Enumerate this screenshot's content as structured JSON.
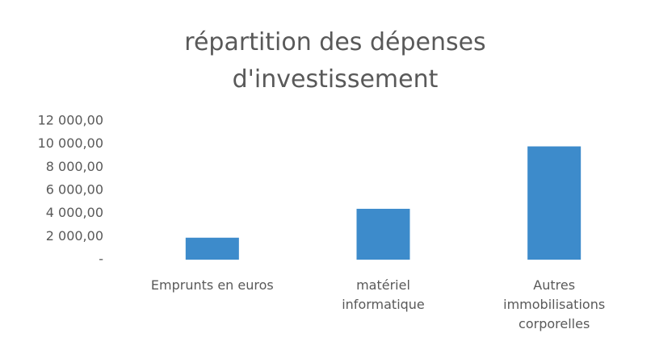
{
  "chart_data": {
    "type": "bar",
    "title": "répartition des dépenses d'investissement",
    "categories": [
      "Emprunts en euros",
      "matériel informatique",
      "Autres immobilisations corporelles"
    ],
    "values": [
      1900,
      4400,
      9800
    ],
    "color": "#3d8bcb",
    "ylim": [
      0,
      12000
    ],
    "yticks": [
      {
        "value": 0,
        "label": "-"
      },
      {
        "value": 2000,
        "label": "2 000,00"
      },
      {
        "value": 4000,
        "label": "4 000,00"
      },
      {
        "value": 6000,
        "label": "6 000,00"
      },
      {
        "value": 8000,
        "label": "8 000,00"
      },
      {
        "value": 10000,
        "label": "10 000,00"
      },
      {
        "value": 12000,
        "label": "12 000,00"
      }
    ],
    "grid": false
  }
}
